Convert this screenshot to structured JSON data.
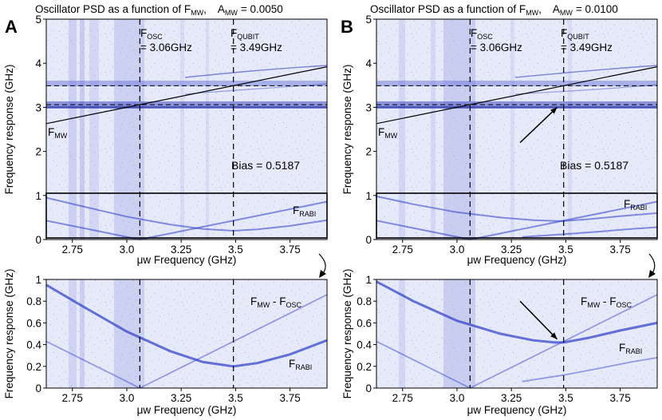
{
  "figure": {
    "colors": {
      "background": "#e4e8f7",
      "signal": "#2a3ac8",
      "axis": "#000000"
    }
  },
  "chart_data": [
    {
      "panel": "A",
      "type": "heatmap",
      "title": {
        "prefix": "Oscillator PSD as a function of F",
        "sub": "MW",
        "comma": ",",
        "amp_prefix": "A",
        "amp_sub": "MW",
        "amp_value": "= 0.0050"
      },
      "xlabel": "μw Frequency (GHz)",
      "ylabel": "Frequency response (GHz)",
      "xlim": [
        2.63,
        3.92
      ],
      "ylim": [
        0,
        5
      ],
      "xticks": [
        "2.75",
        "3.0",
        "3.25",
        "3.5",
        "3.75"
      ],
      "yticks": [
        "0",
        "1",
        "2",
        "3",
        "4",
        "5"
      ],
      "vlines": [
        3.06,
        3.49
      ],
      "hlines": [
        3.06,
        3.49
      ],
      "osc_label": {
        "main": "F",
        "sub": "OSC",
        "value": "= 3.06GHz"
      },
      "qubit_label": {
        "main": "F",
        "sub": "QUBIT",
        "value": "= 3.49GHz"
      },
      "fmw_label": {
        "main": "F",
        "sub": "MW"
      },
      "bias": "Bias = 0.5187",
      "rabi_label": {
        "main": "F",
        "sub": "RABI"
      },
      "series": [
        {
          "name": "F_MW",
          "x": [
            2.63,
            3.92
          ],
          "y": [
            2.63,
            3.92
          ]
        },
        {
          "name": "F_RABI",
          "x": [
            2.63,
            2.8,
            3.0,
            3.2,
            3.35,
            3.49,
            3.6,
            3.75,
            3.92
          ],
          "y": [
            0.95,
            0.75,
            0.52,
            0.34,
            0.24,
            0.2,
            0.23,
            0.31,
            0.44
          ]
        },
        {
          "name": "F_MW - F_OSC",
          "x": [
            3.06,
            3.3,
            3.55,
            3.8,
            3.92
          ],
          "y": [
            0.0,
            0.24,
            0.49,
            0.74,
            0.86
          ]
        },
        {
          "name": "F_OSC - F_MW",
          "x": [
            2.63,
            2.85,
            3.06
          ],
          "y": [
            0.43,
            0.21,
            0.0
          ]
        }
      ],
      "zoom": {
        "xlim": [
          2.63,
          3.92
        ],
        "ylim": [
          0,
          1
        ],
        "xticks": [
          "2.75",
          "3.0",
          "3.25",
          "3.5",
          "3.75"
        ],
        "yticks": [
          "0",
          "0.2",
          "0.4",
          "0.6",
          "0.8",
          "1"
        ],
        "diff_label": {
          "main": "F",
          "sub1": "MW",
          "mid": " - F",
          "sub2": "OSC"
        },
        "rabi_label": {
          "main": "F",
          "sub": "RABI"
        }
      }
    },
    {
      "panel": "B",
      "type": "heatmap",
      "title": {
        "prefix": "Oscillator PSD as a function of F",
        "sub": "MW",
        "comma": ",",
        "amp_prefix": "A",
        "amp_sub": "MW",
        "amp_value": "= 0.0100"
      },
      "xlabel": "μw Frequency (GHz)",
      "ylabel": "Frequency response (GHz)",
      "xlim": [
        2.63,
        3.92
      ],
      "ylim": [
        0,
        5
      ],
      "xticks": [
        "2.75",
        "3.0",
        "3.25",
        "3.5",
        "3.75"
      ],
      "yticks": [
        "0",
        "1",
        "2",
        "3",
        "4",
        "5"
      ],
      "vlines": [
        3.06,
        3.49
      ],
      "hlines": [
        3.06,
        3.49
      ],
      "osc_label": {
        "main": "F",
        "sub": "OSC",
        "value": "= 3.06GHz"
      },
      "qubit_label": {
        "main": "F",
        "sub": "QUBIT",
        "value": "= 3.49GHz"
      },
      "fmw_label": {
        "main": "F",
        "sub": "MW"
      },
      "bias": "Bias = 0.5187",
      "rabi_label": {
        "main": "F",
        "sub": "RABI"
      },
      "arrow": {
        "from": [
          3.29,
          2.2
        ],
        "to": [
          3.46,
          3.0
        ]
      },
      "series": [
        {
          "name": "F_MW",
          "x": [
            2.63,
            3.92
          ],
          "y": [
            2.63,
            3.92
          ]
        },
        {
          "name": "F_RABI",
          "x": [
            2.63,
            2.8,
            3.0,
            3.2,
            3.35,
            3.45,
            3.49,
            3.6,
            3.75,
            3.92
          ],
          "y": [
            0.98,
            0.8,
            0.62,
            0.5,
            0.44,
            0.42,
            0.42,
            0.46,
            0.53,
            0.6
          ]
        },
        {
          "name": "F_MW - F_OSC",
          "x": [
            3.06,
            3.3,
            3.55,
            3.8,
            3.92
          ],
          "y": [
            0.0,
            0.24,
            0.49,
            0.74,
            0.86
          ]
        },
        {
          "name": "F_OSC - F_MW",
          "x": [
            2.63,
            2.85,
            3.06
          ],
          "y": [
            0.43,
            0.21,
            0.0
          ]
        },
        {
          "name": "lower branch",
          "x": [
            3.3,
            3.49,
            3.65,
            3.8,
            3.92
          ],
          "y": [
            0.06,
            0.12,
            0.18,
            0.24,
            0.28
          ]
        }
      ],
      "zoom": {
        "xlim": [
          2.63,
          3.92
        ],
        "ylim": [
          0,
          1
        ],
        "xticks": [
          "2.75",
          "3.0",
          "3.25",
          "3.5",
          "3.75"
        ],
        "yticks": [
          "0",
          "0.2",
          "0.4",
          "0.6",
          "0.8",
          "1"
        ],
        "diff_label": {
          "main": "F",
          "sub1": "MW",
          "mid": " - F",
          "sub2": "OSC"
        },
        "rabi_label": {
          "main": "F",
          "sub": "RABI"
        },
        "arrow": {
          "from": [
            3.29,
            0.8
          ],
          "to": [
            3.46,
            0.45
          ]
        }
      }
    }
  ]
}
